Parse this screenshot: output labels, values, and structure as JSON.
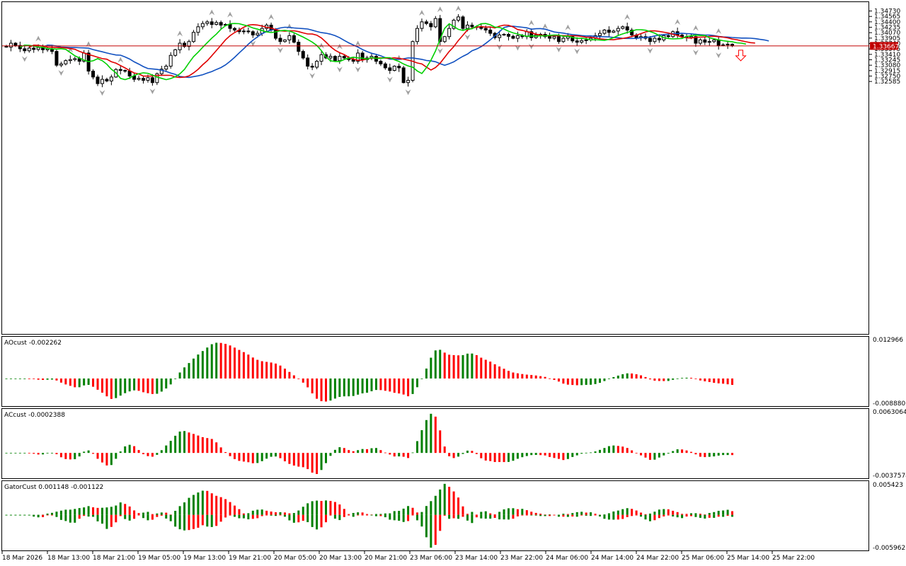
{
  "colors": {
    "background": "#ffffff",
    "frame": "#000000",
    "bull": "#008000",
    "bear": "#ff0000",
    "ma_green": "#00d000",
    "ma_red": "#e00000",
    "ma_blue": "#1050c0",
    "price_line": "#c00000",
    "price_label_bg": "#c00000",
    "fractal": "#a0a0a0"
  },
  "chart_data": [
    {
      "id": "price",
      "type": "candlestick",
      "title": "",
      "ylim": [
        1.249,
        1.35
      ],
      "y_ticks": [
        "1.34730",
        "1.34565",
        "1.34400",
        "1.34235",
        "1.34070",
        "1.33905",
        "1.33740",
        "1.33575",
        "1.33410",
        "1.33245",
        "1.33080",
        "1.32915",
        "1.32750",
        "1.32585"
      ],
      "current_price": "1.33667",
      "x_labels": [
        "18 Mar 2026",
        "18 Mar 13:00",
        "18 Mar 21:00",
        "19 Mar 05:00",
        "19 Mar 13:00",
        "19 Mar 21:00",
        "20 Mar 05:00",
        "20 Mar 13:00",
        "20 Mar 21:00",
        "23 Mar 06:00",
        "23 Mar 14:00",
        "23 Mar 22:00",
        "24 Mar 06:00",
        "24 Mar 14:00",
        "24 Mar 22:00",
        "25 Mar 06:00",
        "25 Mar 14:00",
        "25 Mar 22:00"
      ],
      "closes": [
        1.3363,
        1.3375,
        1.3368,
        1.3358,
        1.3352,
        1.336,
        1.3356,
        1.3362,
        1.3355,
        1.3358,
        1.335,
        1.3308,
        1.3312,
        1.3322,
        1.3325,
        1.3328,
        1.332,
        1.3345,
        1.329,
        1.3272,
        1.3252,
        1.3265,
        1.326,
        1.3272,
        1.3295,
        1.3292,
        1.329,
        1.3275,
        1.3265,
        1.3268,
        1.3262,
        1.327,
        1.3255,
        1.3282,
        1.3296,
        1.3305,
        1.3338,
        1.3355,
        1.3375,
        1.3365,
        1.338,
        1.3408,
        1.3425,
        1.3435,
        1.344,
        1.3432,
        1.3438,
        1.343,
        1.3432,
        1.342,
        1.3415,
        1.341,
        1.3412,
        1.341,
        1.34,
        1.3405,
        1.342,
        1.343,
        1.3415,
        1.339,
        1.338,
        1.3385,
        1.3398,
        1.3378,
        1.335,
        1.333,
        1.3305,
        1.3302,
        1.332,
        1.334,
        1.333,
        1.3335,
        1.3322,
        1.3335,
        1.333,
        1.3325,
        1.332,
        1.3345,
        1.3325,
        1.333,
        1.3335,
        1.332,
        1.3312,
        1.33,
        1.3292,
        1.3305,
        1.33,
        1.3255,
        1.3262,
        1.338,
        1.342,
        1.344,
        1.3435,
        1.3425,
        1.345,
        1.338,
        1.3395,
        1.342,
        1.3445,
        1.3455,
        1.342,
        1.343,
        1.3425,
        1.3425,
        1.342,
        1.3415,
        1.3405,
        1.3392,
        1.34,
        1.3402,
        1.3396,
        1.339,
        1.3398,
        1.3395,
        1.341,
        1.3392,
        1.34,
        1.3402,
        1.3395,
        1.339,
        1.3395,
        1.338,
        1.339,
        1.3395,
        1.3382,
        1.3378,
        1.3383,
        1.3385,
        1.339,
        1.3398,
        1.3405,
        1.3415,
        1.3408,
        1.3412,
        1.342,
        1.3425,
        1.3415,
        1.34,
        1.3392,
        1.3395,
        1.339,
        1.338,
        1.339,
        1.3385,
        1.3398,
        1.3395,
        1.341,
        1.34,
        1.3395,
        1.3392,
        1.3395,
        1.3375,
        1.3385,
        1.3378,
        1.338,
        1.3385,
        1.3368,
        1.337,
        1.3372,
        1.3367
      ],
      "series": [
        {
          "name": "",
          "color_key": "ma_green"
        },
        {
          "name": "",
          "color_key": "ma_red"
        },
        {
          "name": "",
          "color_key": "ma_blue"
        }
      ]
    },
    {
      "id": "ao",
      "type": "histogram",
      "title": "AOcust -0.002262",
      "ylim": [
        -0.00888,
        0.012966
      ],
      "y_ticks": [
        "0.012966",
        "-0.008880"
      ]
    },
    {
      "id": "ac",
      "type": "histogram",
      "title": "ACcust -0.0002388",
      "ylim": [
        -0.0037574,
        0.0063064
      ],
      "y_ticks": [
        "0.0063064",
        "-0.0037574"
      ]
    },
    {
      "id": "gator",
      "type": "histogram",
      "title": "GatorCust 0.001148 -0.001122",
      "ylim": [
        -0.005962,
        0.005423
      ],
      "y_ticks": [
        "0.005423",
        "-0.005962"
      ]
    }
  ]
}
